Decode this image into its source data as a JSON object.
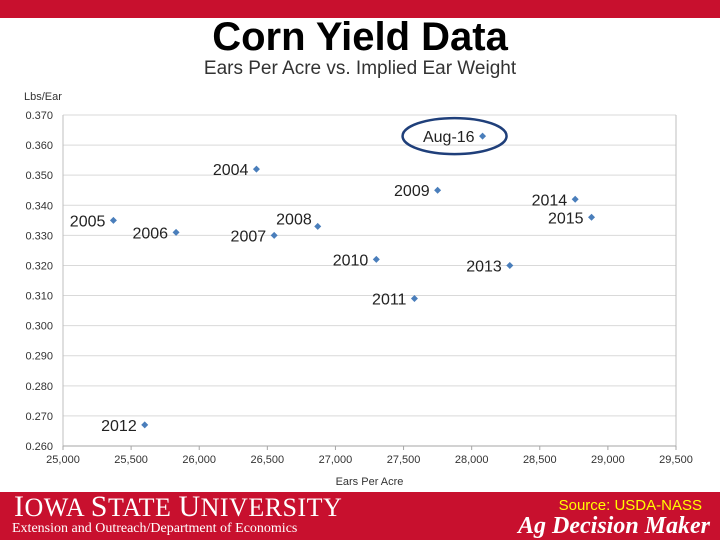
{
  "slide": {
    "title": "Corn Yield Data"
  },
  "footer": {
    "logo_text": "Iowa State University",
    "extension_text": "Extension and Outreach/Department of Economics",
    "source_text": "Source: USDA-NASS",
    "brand_text": "Ag Decision Maker"
  },
  "colors": {
    "brand_red": "#c8102e",
    "marker": "#4a7ebb",
    "highlight_circle": "#1f3f7a",
    "source_text": "#ffff00",
    "gridline": "#d9d9d9",
    "axis_text": "#333333"
  },
  "chart_data": {
    "type": "scatter",
    "title": "Ears Per Acre vs. Implied Ear Weight",
    "xlabel": "Ears Per Acre",
    "ylabel": "Lbs/Ear",
    "xlim": [
      25000,
      29500
    ],
    "ylim": [
      0.26,
      0.37
    ],
    "x_ticks": [
      "25,000",
      "25,500",
      "26,000",
      "26,500",
      "27,000",
      "27,500",
      "28,000",
      "28,500",
      "29,000",
      "29,500"
    ],
    "y_ticks": [
      "0.260",
      "0.270",
      "0.280",
      "0.290",
      "0.300",
      "0.310",
      "0.320",
      "0.330",
      "0.340",
      "0.350",
      "0.360",
      "0.370"
    ],
    "x_tick_values": [
      25000,
      25500,
      26000,
      26500,
      27000,
      27500,
      28000,
      28500,
      29000,
      29500
    ],
    "y_tick_values": [
      0.26,
      0.27,
      0.28,
      0.29,
      0.3,
      0.31,
      0.32,
      0.33,
      0.34,
      0.35,
      0.36,
      0.37
    ],
    "grid": "horizontal",
    "legend": "none",
    "highlight": "Aug-16",
    "points": [
      {
        "label": "2004",
        "x": 26420,
        "y": 0.352,
        "label_side": "left"
      },
      {
        "label": "2005",
        "x": 25370,
        "y": 0.335,
        "label_side": "left"
      },
      {
        "label": "2006",
        "x": 25830,
        "y": 0.331,
        "label_side": "left"
      },
      {
        "label": "2007",
        "x": 26550,
        "y": 0.33,
        "label_side": "left"
      },
      {
        "label": "2008",
        "x": 26870,
        "y": 0.333,
        "label_side": "above-left"
      },
      {
        "label": "2009",
        "x": 27750,
        "y": 0.345,
        "label_side": "left"
      },
      {
        "label": "2010",
        "x": 27300,
        "y": 0.322,
        "label_side": "left"
      },
      {
        "label": "2011",
        "x": 27580,
        "y": 0.309,
        "label_side": "left"
      },
      {
        "label": "2012",
        "x": 25600,
        "y": 0.267,
        "label_side": "left"
      },
      {
        "label": "2013",
        "x": 28280,
        "y": 0.32,
        "label_side": "left"
      },
      {
        "label": "2014",
        "x": 28760,
        "y": 0.342,
        "label_side": "left"
      },
      {
        "label": "2015",
        "x": 28880,
        "y": 0.336,
        "label_side": "left"
      },
      {
        "label": "Aug-16",
        "x": 28080,
        "y": 0.363,
        "label_side": "left"
      }
    ]
  }
}
